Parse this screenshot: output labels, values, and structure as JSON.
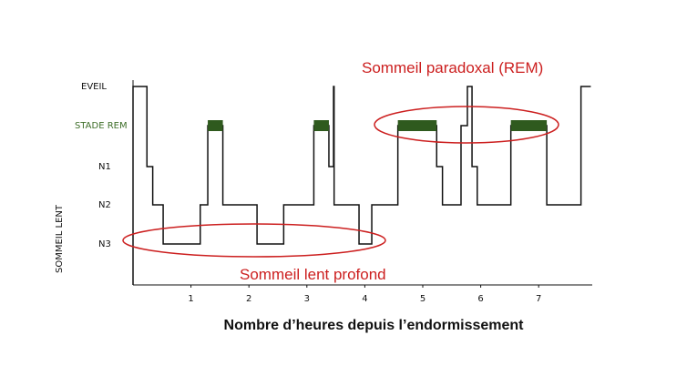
{
  "chart_data": {
    "type": "line",
    "title": "",
    "xlabel": "Nombre d’heures depuis l’endormissement",
    "ylabel": "SOMMEIL LENT",
    "xlim": [
      0,
      7.9
    ],
    "x_ticks": [
      "1",
      "2",
      "3",
      "4",
      "5",
      "6",
      "7"
    ],
    "y_levels": [
      "EVEIL",
      "STADE REM",
      "N1",
      "N2",
      "N3"
    ],
    "hypnogram": [
      {
        "x": 0.0,
        "stage": "EVEIL"
      },
      {
        "x": 0.24,
        "stage": "N1"
      },
      {
        "x": 0.34,
        "stage": "N2"
      },
      {
        "x": 0.52,
        "stage": "N3"
      },
      {
        "x": 1.16,
        "stage": "N2"
      },
      {
        "x": 1.29,
        "stage": "STADE REM"
      },
      {
        "x": 1.55,
        "stage": "N2"
      },
      {
        "x": 2.14,
        "stage": "N3"
      },
      {
        "x": 2.6,
        "stage": "N2"
      },
      {
        "x": 3.12,
        "stage": "STADE REM"
      },
      {
        "x": 3.38,
        "stage": "N1"
      },
      {
        "x": 3.46,
        "stage": "EVEIL"
      },
      {
        "x": 3.47,
        "stage": "N2"
      },
      {
        "x": 3.9,
        "stage": "N3"
      },
      {
        "x": 4.12,
        "stage": "N2"
      },
      {
        "x": 4.57,
        "stage": "STADE REM"
      },
      {
        "x": 5.24,
        "stage": "N1"
      },
      {
        "x": 5.34,
        "stage": "N2"
      },
      {
        "x": 5.66,
        "stage": "STADE REM"
      },
      {
        "x": 5.77,
        "stage": "EVEIL"
      },
      {
        "x": 5.85,
        "stage": "N1"
      },
      {
        "x": 5.94,
        "stage": "N2"
      },
      {
        "x": 6.52,
        "stage": "STADE REM"
      },
      {
        "x": 7.14,
        "stage": "N2"
      },
      {
        "x": 7.73,
        "stage": "EVEIL"
      },
      {
        "x": 7.9,
        "stage": "EVEIL"
      }
    ],
    "rem_periods": [
      [
        1.29,
        1.55
      ],
      [
        3.12,
        3.38
      ],
      [
        4.57,
        5.24
      ],
      [
        6.52,
        7.14
      ]
    ],
    "annotations": [
      {
        "text": "Sommeil paradoxal (REM)",
        "center_x": 5.85,
        "stage": "STADE REM"
      },
      {
        "text": "Sommeil lent profond",
        "center_x": 2.35,
        "stage": "N3"
      }
    ],
    "colors": {
      "line": "#111111",
      "rem": "#2f5a1e",
      "annotation": "#cc1f1f"
    }
  }
}
